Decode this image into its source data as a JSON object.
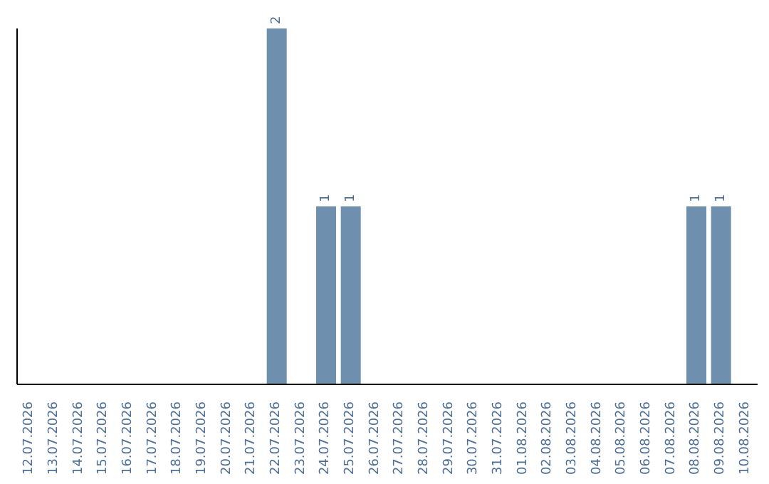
{
  "chart_data": {
    "type": "bar",
    "categories": [
      "12.07.2026",
      "13.07.2026",
      "14.07.2026",
      "15.07.2026",
      "16.07.2026",
      "17.07.2026",
      "18.07.2026",
      "19.07.2026",
      "20.07.2026",
      "21.07.2026",
      "22.07.2026",
      "23.07.2026",
      "24.07.2026",
      "25.07.2026",
      "26.07.2026",
      "27.07.2026",
      "28.07.2026",
      "29.07.2026",
      "30.07.2026",
      "31.07.2026",
      "01.08.2026",
      "02.08.2026",
      "03.08.2026",
      "04.08.2026",
      "05.08.2026",
      "06.08.2026",
      "07.08.2026",
      "08.08.2026",
      "09.08.2026",
      "10.08.2026"
    ],
    "values": [
      0,
      0,
      0,
      0,
      0,
      0,
      0,
      0,
      0,
      0,
      2,
      0,
      1,
      1,
      0,
      0,
      0,
      0,
      0,
      0,
      0,
      0,
      0,
      0,
      0,
      0,
      0,
      1,
      1,
      0
    ],
    "value_labels": [
      null,
      null,
      null,
      null,
      null,
      null,
      null,
      null,
      null,
      null,
      "2",
      null,
      "1",
      "1",
      null,
      null,
      null,
      null,
      null,
      null,
      null,
      null,
      null,
      null,
      null,
      null,
      null,
      "1",
      "1",
      null
    ],
    "color": "#6f8fae",
    "tick_labels": "x"
  }
}
